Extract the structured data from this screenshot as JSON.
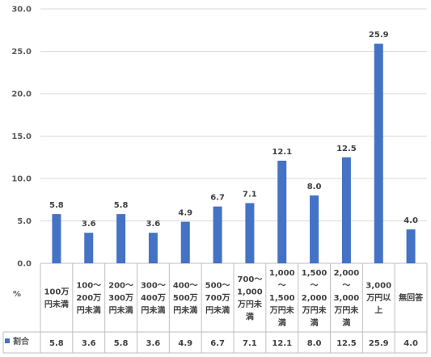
{
  "chart_data": {
    "type": "bar",
    "ylabel": "%",
    "ylim": [
      0,
      30
    ],
    "yticks": [
      "0.0",
      "5.0",
      "10.0",
      "15.0",
      "20.0",
      "25.0",
      "30.0"
    ],
    "grid": true,
    "bar_color": "#4472C4",
    "categories": [
      [
        "100万",
        "円未満"
      ],
      [
        "100～",
        "200万",
        "円未満"
      ],
      [
        "200～",
        "300万",
        "円未満"
      ],
      [
        "300～",
        "400万",
        "円未満"
      ],
      [
        "400～",
        "500万",
        "円未満"
      ],
      [
        "500～",
        "700万",
        "円未満"
      ],
      [
        "700～",
        "1,000",
        "万円未",
        "満"
      ],
      [
        "1,000",
        "～",
        "1,500",
        "万円未",
        "満"
      ],
      [
        "1,500",
        "～",
        "2,000",
        "万円未",
        "満"
      ],
      [
        "2,000",
        "～",
        "3,000",
        "万円未",
        "満"
      ],
      [
        "3,000",
        "万円以",
        "上"
      ],
      [
        "無回答"
      ]
    ],
    "series": [
      {
        "name": "割合",
        "values": [
          5.8,
          3.6,
          5.8,
          3.6,
          4.9,
          6.7,
          7.1,
          12.1,
          8.0,
          12.5,
          25.9,
          4.0
        ],
        "labels": [
          "5.8",
          "3.6",
          "5.8",
          "3.6",
          "4.9",
          "6.7",
          "7.1",
          "12.1",
          "8.0",
          "12.5",
          "25.9",
          "4.0"
        ]
      }
    ]
  }
}
